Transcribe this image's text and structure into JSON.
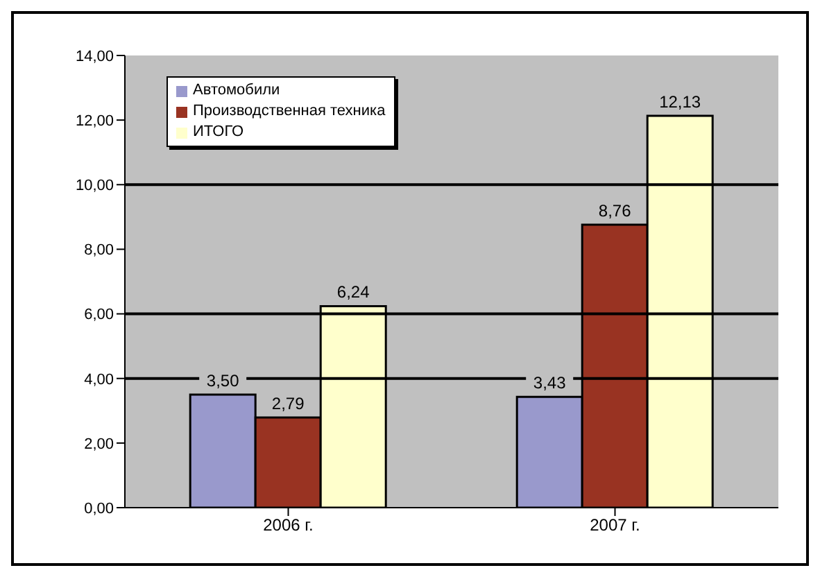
{
  "chart_data": {
    "type": "bar",
    "categories": [
      "2006 г.",
      "2007 г."
    ],
    "series": [
      {
        "name": "Автомобили",
        "color": "#9999cc",
        "values": [
          3.5,
          3.43
        ],
        "value_labels": [
          "3,50",
          "3,43"
        ]
      },
      {
        "name": "Производственная техника",
        "color": "#993322",
        "values": [
          2.79,
          8.76
        ],
        "value_labels": [
          "2,79",
          "8,76"
        ]
      },
      {
        "name": "ИТОГО",
        "color": "#ffffcc",
        "values": [
          6.24,
          12.13
        ],
        "value_labels": [
          "6,24",
          "12,13"
        ]
      }
    ],
    "ylim": [
      0,
      14
    ],
    "yticks": [
      {
        "value": 0,
        "label": "0,00"
      },
      {
        "value": 2,
        "label": "2,00"
      },
      {
        "value": 4,
        "label": "4,00"
      },
      {
        "value": 6,
        "label": "6,00"
      },
      {
        "value": 8,
        "label": "8,00"
      },
      {
        "value": 10,
        "label": "10,00"
      },
      {
        "value": 12,
        "label": "12,00"
      },
      {
        "value": 14,
        "label": "14,00"
      }
    ],
    "ref_lines": [
      {
        "axis": "y",
        "value": 4,
        "color": "#000000"
      },
      {
        "axis": "y",
        "value": 6,
        "color": "#000000"
      },
      {
        "axis": "y",
        "value": 10,
        "color": "#000000"
      }
    ],
    "legend": "top left",
    "grid": false
  }
}
